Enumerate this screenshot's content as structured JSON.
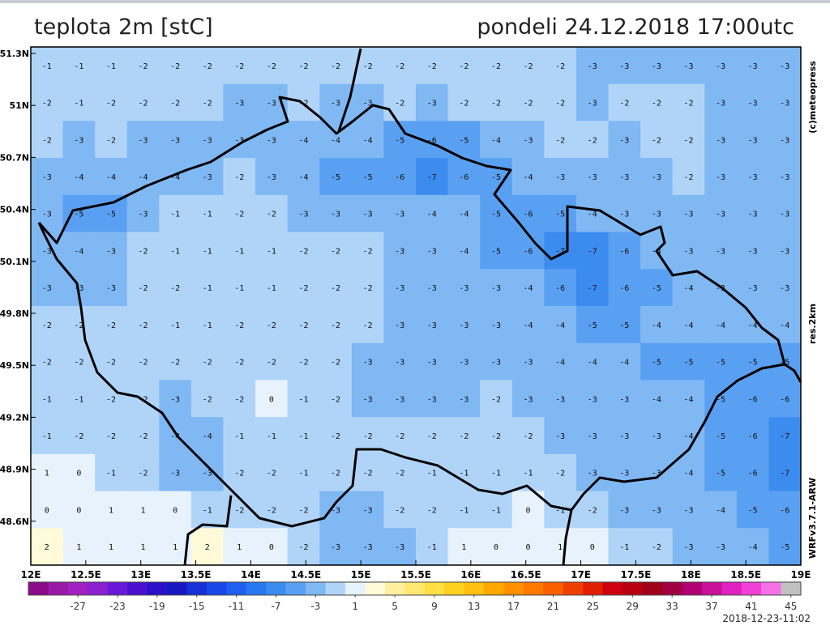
{
  "header": {
    "title": "teplota 2m [stC]",
    "time": "pondeli 24.12.2018 17:00utc"
  },
  "map": {
    "lat_labels": [
      "51.3N",
      "51N",
      "50.7N",
      "50.4N",
      "50.1N",
      "49.8N",
      "49.5N",
      "49.2N",
      "48.9N",
      "48.6N"
    ],
    "lon_labels": [
      "12E",
      "12.5E",
      "13E",
      "13.5E",
      "14E",
      "14.5E",
      "15E",
      "15.5E",
      "16E",
      "16.5E",
      "17E",
      "17.5E",
      "18E",
      "18.5E",
      "19E"
    ],
    "side_labels": [
      "(c)meteopress",
      "res.2km",
      "WRFv3.7.1-ARW"
    ],
    "grid": [
      [
        -1,
        -1,
        -1,
        -2,
        -2,
        -2,
        -2,
        -2,
        -2,
        -2,
        -2,
        -2,
        -2,
        -2,
        -2,
        -2,
        -2,
        -3,
        -3,
        -3,
        -3,
        -3,
        -3,
        -3
      ],
      [
        -2,
        -1,
        -2,
        -2,
        -2,
        -2,
        -3,
        -3,
        -2,
        -3,
        -3,
        -2,
        -3,
        -2,
        -2,
        -2,
        -2,
        -3,
        -2,
        -2,
        -2,
        -3,
        -3,
        -3
      ],
      [
        -2,
        -3,
        -2,
        -3,
        -3,
        -3,
        -3,
        -3,
        -4,
        -4,
        -4,
        -5,
        -6,
        -5,
        -4,
        -3,
        -2,
        -2,
        -3,
        -2,
        -2,
        -3,
        -3,
        -3
      ],
      [
        -3,
        -4,
        -4,
        -4,
        -4,
        -3,
        -2,
        -3,
        -4,
        -5,
        -5,
        -6,
        -7,
        -6,
        -5,
        -4,
        -3,
        -3,
        -3,
        -3,
        -2,
        -3,
        -3,
        -3
      ],
      [
        -3,
        -5,
        -5,
        -3,
        -1,
        -1,
        -2,
        -2,
        -3,
        -3,
        -3,
        -3,
        -4,
        -4,
        -5,
        -6,
        -5,
        -4,
        -3,
        -3,
        -3,
        -3,
        -3,
        -3
      ],
      [
        -3,
        -4,
        -3,
        -2,
        -1,
        -1,
        -1,
        -1,
        -2,
        -2,
        -2,
        -3,
        -3,
        -4,
        -5,
        -6,
        -7,
        -7,
        -6,
        -4,
        -3,
        -3,
        -3,
        -3
      ],
      [
        -3,
        -3,
        -3,
        -2,
        -2,
        -1,
        -1,
        -1,
        -2,
        -2,
        -2,
        -3,
        -3,
        -3,
        -3,
        -4,
        -6,
        -7,
        -6,
        -5,
        -4,
        -3,
        -3,
        -3
      ],
      [
        -2,
        -2,
        -2,
        -2,
        -1,
        -1,
        -2,
        -2,
        -2,
        -2,
        -2,
        -3,
        -3,
        -3,
        -3,
        -4,
        -4,
        -5,
        -5,
        -4,
        -4,
        -4,
        -4,
        -4
      ],
      [
        -2,
        -2,
        -2,
        -2,
        -2,
        -2,
        -2,
        -2,
        -2,
        -2,
        -3,
        -3,
        -3,
        -3,
        -3,
        -3,
        -4,
        -4,
        -4,
        -5,
        -5,
        -5,
        -5,
        -5
      ],
      [
        -1,
        -1,
        -2,
        -2,
        -3,
        -2,
        -2,
        0,
        -1,
        -2,
        -3,
        -3,
        -3,
        -3,
        -2,
        -3,
        -3,
        -3,
        -3,
        -4,
        -4,
        -5,
        -6,
        -6
      ],
      [
        -1,
        -2,
        -2,
        -2,
        -4,
        -4,
        -1,
        -1,
        -1,
        -2,
        -2,
        -2,
        -2,
        -2,
        -2,
        -2,
        -3,
        -3,
        -3,
        -3,
        -4,
        -5,
        -6,
        -7
      ],
      [
        1,
        0,
        -1,
        -2,
        -3,
        -3,
        -2,
        -2,
        -1,
        -2,
        -2,
        -2,
        -1,
        -1,
        -1,
        -1,
        -2,
        -3,
        -3,
        -3,
        -4,
        -5,
        -6,
        -7
      ],
      [
        0,
        0,
        1,
        1,
        0,
        -1,
        -2,
        -2,
        -2,
        -3,
        -3,
        -2,
        -2,
        -1,
        -1,
        0,
        -1,
        -2,
        -3,
        -3,
        -3,
        -4,
        -5,
        -6
      ],
      [
        2,
        1,
        1,
        1,
        1,
        2,
        1,
        0,
        -2,
        -3,
        -3,
        -3,
        -1,
        1,
        0,
        0,
        1,
        0,
        -1,
        -2,
        -3,
        -3,
        -4,
        -5
      ]
    ]
  },
  "colorbar": {
    "min": -32,
    "max": 46,
    "step": 2,
    "colors": [
      "#8a0a8a",
      "#9a1aa8",
      "#a020c0",
      "#8a20d0",
      "#6a18d8",
      "#4a10d0",
      "#2a10c8",
      "#1818c0",
      "#1830d8",
      "#1848e8",
      "#2060f0",
      "#2878f0",
      "#3c8cf0",
      "#5aa0f2",
      "#80b8f4",
      "#b0d4f8",
      "#e8f2fc",
      "#fffbd8",
      "#fff0a0",
      "#ffe870",
      "#ffe040",
      "#ffd020",
      "#ffc010",
      "#ffa800",
      "#ff9000",
      "#ff7800",
      "#f86000",
      "#f04000",
      "#e02000",
      "#d00010",
      "#b80010",
      "#a00018",
      "#a00040",
      "#b00070",
      "#c8109a",
      "#e020c0",
      "#f040d8",
      "#f870e8",
      "#c0c0c0"
    ],
    "ticks": [
      -27,
      -23,
      -19,
      -15,
      -11,
      -7,
      -3,
      1,
      5,
      9,
      13,
      17,
      21,
      25,
      29,
      33,
      37,
      41,
      45
    ]
  },
  "footer": {
    "created": "2018-12-23-11:02"
  }
}
